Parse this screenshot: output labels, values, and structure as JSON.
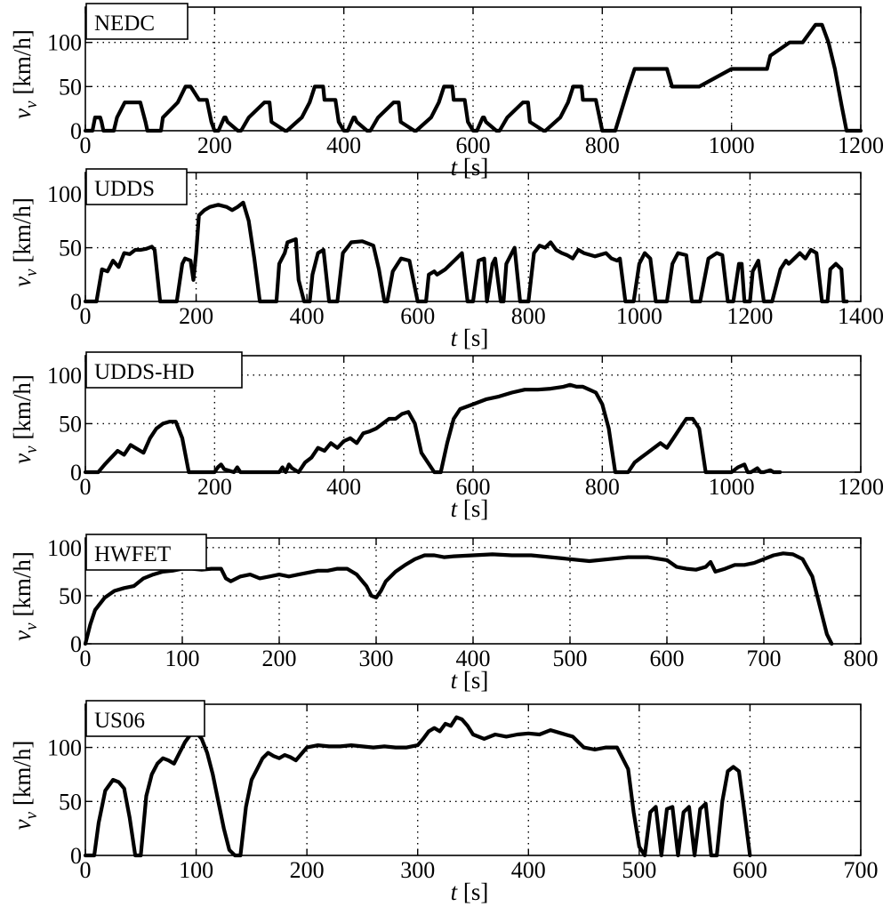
{
  "chart_data": [
    {
      "type": "line",
      "title": "NEDC",
      "xlabel": "t [s]",
      "ylabel": "v_v [km/h]",
      "xlim": [
        0,
        1200
      ],
      "ylim": [
        0,
        140
      ],
      "xticks": [
        0,
        200,
        400,
        600,
        800,
        1000,
        1200
      ],
      "yticks": [
        0,
        50,
        100
      ],
      "grid": true,
      "series": [
        {
          "x": [
            0,
            11,
            15,
            23,
            25,
            28,
            44,
            49,
            61,
            85,
            93,
            96,
            117,
            120,
            143,
            155,
            163,
            176,
            178,
            188,
            195,
            200,
            206,
            215,
            217,
            220,
            236,
            241,
            253,
            277,
            285,
            288,
            309,
            312,
            335,
            347,
            355,
            368,
            370,
            380,
            387,
            392,
            400,
            406,
            415,
            417,
            420,
            436,
            441,
            453,
            477,
            485,
            488,
            509,
            512,
            535,
            547,
            555,
            568,
            570,
            580,
            587,
            592,
            600,
            606,
            615,
            617,
            620,
            636,
            641,
            653,
            677,
            685,
            688,
            709,
            712,
            735,
            747,
            755,
            768,
            770,
            780,
            790,
            800,
            820,
            841,
            850,
            900,
            908,
            950,
            1000,
            1010,
            1055,
            1060,
            1090,
            1100,
            1110,
            1120,
            1130,
            1140,
            1150,
            1160,
            1170,
            1178,
            1180,
            1200
          ],
          "y": [
            0,
            0,
            15,
            15,
            10,
            0,
            0,
            15,
            32,
            32,
            10,
            0,
            0,
            15,
            32,
            50,
            50,
            35,
            35,
            35,
            10,
            0,
            0,
            15,
            15,
            10,
            0,
            0,
            15,
            32,
            32,
            10,
            0,
            0,
            15,
            32,
            50,
            50,
            35,
            35,
            35,
            10,
            0,
            0,
            15,
            15,
            10,
            0,
            0,
            15,
            32,
            32,
            10,
            0,
            0,
            15,
            32,
            50,
            50,
            35,
            35,
            35,
            10,
            0,
            0,
            15,
            15,
            10,
            0,
            0,
            15,
            32,
            32,
            10,
            0,
            0,
            15,
            32,
            50,
            50,
            35,
            35,
            35,
            0,
            0,
            50,
            70,
            70,
            50,
            50,
            70,
            70,
            70,
            85,
            100,
            100,
            100,
            110,
            120,
            120,
            100,
            70,
            30,
            0,
            0,
            0
          ]
        }
      ]
    },
    {
      "type": "line",
      "title": "UDDS",
      "xlabel": "t [s]",
      "ylabel": "v_v [km/h]",
      "xlim": [
        0,
        1400
      ],
      "ylim": [
        0,
        120
      ],
      "xticks": [
        0,
        200,
        400,
        600,
        800,
        1000,
        1200,
        1400
      ],
      "yticks": [
        0,
        50,
        100
      ],
      "grid": true,
      "series": [
        {
          "x": [
            0,
            20,
            30,
            40,
            50,
            60,
            70,
            80,
            90,
            100,
            110,
            120,
            125,
            135,
            165,
            175,
            180,
            190,
            195,
            200,
            205,
            215,
            225,
            240,
            255,
            265,
            275,
            285,
            295,
            305,
            315,
            330,
            345,
            350,
            360,
            365,
            380,
            385,
            395,
            405,
            410,
            420,
            430,
            440,
            455,
            465,
            480,
            500,
            520,
            530,
            540,
            545,
            555,
            570,
            585,
            600,
            615,
            620,
            630,
            635,
            650,
            670,
            680,
            690,
            700,
            710,
            720,
            725,
            735,
            740,
            750,
            755,
            760,
            770,
            775,
            785,
            800,
            810,
            820,
            830,
            840,
            850,
            860,
            870,
            880,
            890,
            900,
            920,
            940,
            950,
            960,
            965,
            975,
            990,
            1000,
            1010,
            1020,
            1030,
            1050,
            1060,
            1070,
            1085,
            1095,
            1110,
            1125,
            1140,
            1150,
            1160,
            1170,
            1180,
            1185,
            1190,
            1200,
            1205,
            1215,
            1225,
            1240,
            1255,
            1265,
            1270,
            1280,
            1290,
            1300,
            1310,
            1320,
            1330,
            1340,
            1345,
            1355,
            1365,
            1369,
            1375
          ],
          "y": [
            0,
            0,
            30,
            28,
            38,
            32,
            45,
            44,
            48,
            48,
            49,
            51,
            48,
            0,
            0,
            35,
            40,
            38,
            20,
            45,
            80,
            85,
            88,
            90,
            88,
            85,
            88,
            92,
            75,
            40,
            0,
            0,
            0,
            35,
            45,
            55,
            58,
            20,
            0,
            0,
            25,
            45,
            48,
            0,
            0,
            45,
            55,
            56,
            52,
            30,
            0,
            0,
            28,
            40,
            38,
            0,
            0,
            25,
            28,
            25,
            30,
            40,
            45,
            0,
            0,
            38,
            40,
            0,
            35,
            40,
            0,
            0,
            35,
            45,
            50,
            0,
            0,
            45,
            52,
            50,
            55,
            48,
            45,
            43,
            40,
            48,
            45,
            42,
            45,
            40,
            38,
            40,
            0,
            0,
            35,
            45,
            40,
            0,
            0,
            35,
            45,
            43,
            0,
            0,
            40,
            45,
            43,
            0,
            0,
            35,
            35,
            0,
            0,
            28,
            38,
            0,
            0,
            30,
            38,
            35,
            40,
            45,
            40,
            48,
            45,
            0,
            0,
            30,
            35,
            30,
            0,
            0
          ]
        }
      ]
    },
    {
      "type": "line",
      "title": "UDDS-HD",
      "xlabel": "t [s]",
      "ylabel": "v_v [km/h]",
      "xlim": [
        0,
        1200
      ],
      "ylim": [
        0,
        120
      ],
      "xticks": [
        0,
        200,
        400,
        600,
        800,
        1000,
        1200
      ],
      "yticks": [
        0,
        50,
        100
      ],
      "grid": true,
      "series": [
        {
          "x": [
            0,
            20,
            30,
            40,
            50,
            60,
            70,
            80,
            90,
            100,
            110,
            120,
            130,
            140,
            150,
            160,
            190,
            200,
            205,
            210,
            215,
            230,
            235,
            240,
            300,
            305,
            310,
            315,
            320,
            330,
            340,
            350,
            360,
            370,
            380,
            390,
            400,
            410,
            420,
            430,
            440,
            450,
            460,
            470,
            480,
            490,
            500,
            510,
            520,
            540,
            550,
            560,
            570,
            580,
            600,
            620,
            640,
            660,
            680,
            700,
            720,
            740,
            750,
            760,
            770,
            780,
            790,
            800,
            810,
            820,
            840,
            850,
            860,
            870,
            880,
            890,
            900,
            910,
            920,
            930,
            940,
            950,
            960,
            1000,
            1010,
            1020,
            1025,
            1030,
            1040,
            1045,
            1050,
            1060,
            1065,
            1075
          ],
          "y": [
            0,
            0,
            8,
            15,
            22,
            18,
            28,
            24,
            20,
            35,
            45,
            50,
            52,
            52,
            35,
            0,
            0,
            0,
            5,
            8,
            3,
            0,
            5,
            0,
            0,
            5,
            0,
            8,
            4,
            0,
            10,
            15,
            25,
            22,
            30,
            25,
            32,
            35,
            30,
            40,
            42,
            45,
            50,
            55,
            55,
            60,
            62,
            50,
            20,
            0,
            0,
            30,
            55,
            65,
            70,
            75,
            78,
            82,
            85,
            85,
            86,
            88,
            90,
            88,
            88,
            85,
            82,
            70,
            45,
            0,
            0,
            10,
            15,
            20,
            25,
            30,
            25,
            35,
            45,
            55,
            55,
            45,
            0,
            0,
            5,
            8,
            0,
            0,
            4,
            0,
            0,
            2,
            0,
            0
          ]
        }
      ]
    },
    {
      "type": "line",
      "title": "HWFET",
      "xlabel": "t [s]",
      "ylabel": "v_v [km/h]",
      "xlim": [
        0,
        800
      ],
      "ylim": [
        0,
        110
      ],
      "xticks": [
        0,
        100,
        200,
        300,
        400,
        500,
        600,
        700,
        800
      ],
      "yticks": [
        0,
        50,
        100
      ],
      "grid": true,
      "series": [
        {
          "x": [
            0,
            5,
            10,
            20,
            30,
            40,
            50,
            60,
            70,
            80,
            90,
            100,
            110,
            120,
            130,
            140,
            145,
            150,
            160,
            170,
            180,
            190,
            200,
            210,
            220,
            230,
            240,
            250,
            260,
            270,
            280,
            290,
            295,
            300,
            305,
            310,
            320,
            330,
            340,
            350,
            360,
            370,
            380,
            400,
            420,
            440,
            460,
            480,
            500,
            520,
            540,
            560,
            580,
            600,
            610,
            620,
            630,
            640,
            645,
            650,
            660,
            670,
            680,
            690,
            700,
            710,
            720,
            730,
            740,
            750,
            760,
            765,
            770
          ],
          "y": [
            0,
            20,
            35,
            48,
            55,
            58,
            60,
            68,
            72,
            75,
            76,
            78,
            78,
            77,
            78,
            78,
            68,
            65,
            70,
            72,
            68,
            70,
            72,
            70,
            72,
            74,
            76,
            76,
            78,
            78,
            72,
            60,
            50,
            48,
            55,
            65,
            75,
            82,
            88,
            92,
            92,
            90,
            91,
            92,
            93,
            92,
            92,
            90,
            88,
            86,
            88,
            90,
            90,
            87,
            80,
            78,
            77,
            80,
            85,
            75,
            78,
            82,
            82,
            84,
            88,
            92,
            94,
            93,
            88,
            70,
            30,
            10,
            0
          ]
        }
      ]
    },
    {
      "type": "line",
      "title": "US06",
      "xlabel": "t [s]",
      "ylabel": "v_v [km/h]",
      "xlim": [
        0,
        700
      ],
      "ylim": [
        0,
        140
      ],
      "xticks": [
        0,
        100,
        200,
        300,
        400,
        500,
        600,
        700
      ],
      "yticks": [
        0,
        50,
        100
      ],
      "grid": true,
      "series": [
        {
          "x": [
            0,
            8,
            12,
            18,
            25,
            30,
            35,
            40,
            45,
            50,
            55,
            60,
            65,
            70,
            75,
            80,
            85,
            90,
            95,
            100,
            105,
            110,
            115,
            120,
            125,
            130,
            135,
            140,
            145,
            150,
            155,
            160,
            165,
            170,
            175,
            180,
            185,
            190,
            195,
            200,
            210,
            220,
            230,
            240,
            250,
            260,
            270,
            280,
            290,
            300,
            305,
            310,
            315,
            320,
            325,
            330,
            335,
            340,
            345,
            350,
            360,
            370,
            380,
            390,
            400,
            410,
            420,
            430,
            440,
            450,
            460,
            470,
            475,
            480,
            490,
            495,
            500,
            505,
            510,
            515,
            520,
            525,
            530,
            535,
            540,
            545,
            550,
            555,
            560,
            565,
            570,
            575,
            580,
            585,
            590,
            595,
            600
          ],
          "y": [
            0,
            0,
            30,
            60,
            70,
            68,
            62,
            35,
            0,
            0,
            55,
            75,
            85,
            90,
            88,
            85,
            95,
            105,
            112,
            114,
            108,
            95,
            75,
            50,
            25,
            5,
            0,
            0,
            45,
            70,
            80,
            90,
            95,
            92,
            90,
            93,
            91,
            88,
            94,
            100,
            102,
            101,
            101,
            102,
            101,
            100,
            101,
            100,
            100,
            102,
            108,
            115,
            118,
            115,
            122,
            120,
            128,
            126,
            120,
            112,
            108,
            112,
            110,
            112,
            113,
            112,
            116,
            113,
            110,
            100,
            98,
            100,
            100,
            100,
            80,
            40,
            8,
            0,
            40,
            45,
            0,
            43,
            45,
            0,
            40,
            45,
            0,
            43,
            48,
            0,
            0,
            50,
            78,
            82,
            78,
            40,
            0
          ]
        }
      ]
    }
  ]
}
